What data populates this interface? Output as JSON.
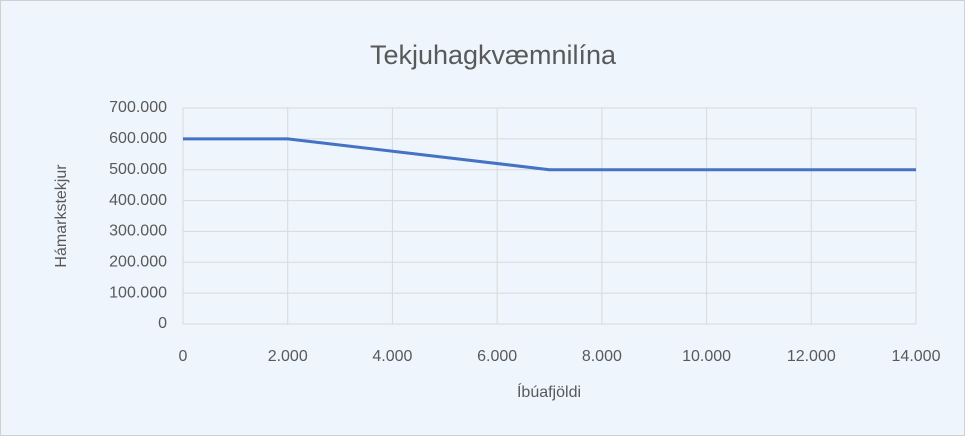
{
  "chart_data": {
    "type": "line",
    "title": "Tekjuhagkvæmnilína",
    "x_label": "Íbúafjöldi",
    "y_label": "Hámarkstekjur",
    "x": [
      0,
      2000,
      7000,
      14000
    ],
    "series": [
      {
        "color": "#4472c4",
        "values": [
          600000,
          600000,
          500000,
          500000
        ]
      }
    ],
    "xlim": [
      0,
      14000
    ],
    "xticks": [
      0,
      {
        "value": 2000,
        "label": "2.000"
      },
      {
        "value": 4000,
        "label": "4.000"
      },
      {
        "value": 6000,
        "label": "6.000"
      },
      {
        "value": 8000,
        "label": "8.000"
      },
      {
        "value": 10000,
        "label": "10.000"
      },
      {
        "value": 12000,
        "label": "12.000"
      },
      {
        "value": 14000,
        "label": "14.000"
      }
    ],
    "ylim": [
      0,
      700000
    ],
    "yticks": [
      0,
      {
        "value": 100000,
        "label": "100.000"
      },
      {
        "value": 200000,
        "label": "200.000"
      },
      {
        "value": 300000,
        "label": "300.000"
      },
      {
        "value": 400000,
        "label": "400.000"
      },
      {
        "value": 500000,
        "label": "500.000"
      },
      {
        "value": 600000,
        "label": "600.000"
      },
      {
        "value": 700000,
        "label": "700.000"
      }
    ],
    "grid": true
  }
}
